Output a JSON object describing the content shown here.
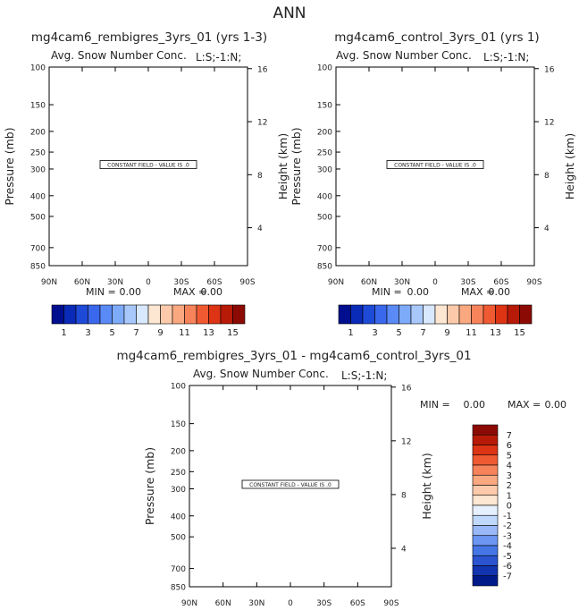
{
  "page": {
    "main_title": "ANN",
    "constant_field_text": "CONSTANT FIELD - VALUE IS .0",
    "min_label": "MIN =",
    "max_label": "MAX ="
  },
  "chart_data": [
    {
      "type": "contour",
      "title": "mg4cam6_rembigres_3yrs_01 (yrs 1-3)",
      "subtitle": "Avg. Snow Number Conc.",
      "field_label": "L:S;-1:N;",
      "xlabel": "",
      "ylabel": "Pressure (mb)",
      "y2label": "Height (km)",
      "x_ticks": [
        "90N",
        "60N",
        "30N",
        "0",
        "30S",
        "60S",
        "90S"
      ],
      "y_ticks": [
        "100",
        "150",
        "200",
        "250",
        "300",
        "400",
        "500",
        "700",
        "850"
      ],
      "y2_ticks": [
        "16",
        "12",
        "8",
        "4"
      ],
      "min": "0.00",
      "max": "0.00",
      "constant_value": 0,
      "colorbar": {
        "orientation": "horizontal",
        "labels": [
          "1",
          "3",
          "5",
          "7",
          "9",
          "11",
          "13",
          "15"
        ],
        "colors": [
          "#000f8e",
          "#0a2ab8",
          "#1e4ad8",
          "#3a68ec",
          "#5a8af6",
          "#7eaafa",
          "#a8c8fc",
          "#d8e8fe",
          "#fde6d2",
          "#fccaaa",
          "#f9a880",
          "#f6835a",
          "#f05a32",
          "#dc3414",
          "#b81a08",
          "#8c0a04"
        ]
      }
    },
    {
      "type": "contour",
      "title": "mg4cam6_control_3yrs_01 (yrs 1)",
      "subtitle": "Avg. Snow Number Conc.",
      "field_label": "L:S;-1:N;",
      "xlabel": "",
      "ylabel": "Pressure (mb)",
      "y2label": "Height (km)",
      "x_ticks": [
        "90N",
        "60N",
        "30N",
        "0",
        "30S",
        "60S",
        "90S"
      ],
      "y_ticks": [
        "100",
        "150",
        "200",
        "250",
        "300",
        "400",
        "500",
        "700",
        "850"
      ],
      "y2_ticks": [
        "16",
        "12",
        "8",
        "4"
      ],
      "min": "0.00",
      "max": "0.00",
      "constant_value": 0,
      "colorbar": {
        "orientation": "horizontal",
        "labels": [
          "1",
          "3",
          "5",
          "7",
          "9",
          "11",
          "13",
          "15"
        ],
        "colors": [
          "#000f8e",
          "#0a2ab8",
          "#1e4ad8",
          "#3a68ec",
          "#5a8af6",
          "#7eaafa",
          "#a8c8fc",
          "#d8e8fe",
          "#fde6d2",
          "#fccaaa",
          "#f9a880",
          "#f6835a",
          "#f05a32",
          "#dc3414",
          "#b81a08",
          "#8c0a04"
        ]
      }
    },
    {
      "type": "contour",
      "title": "mg4cam6_rembigres_3yrs_01 - mg4cam6_control_3yrs_01",
      "subtitle": "Avg. Snow Number Conc.",
      "field_label": "L:S;-1:N;",
      "xlabel": "",
      "ylabel": "Pressure (mb)",
      "y2label": "Height (km)",
      "x_ticks": [
        "90N",
        "60N",
        "30N",
        "0",
        "30S",
        "60S",
        "90S"
      ],
      "y_ticks": [
        "100",
        "150",
        "200",
        "250",
        "300",
        "400",
        "500",
        "700",
        "850"
      ],
      "y2_ticks": [
        "16",
        "12",
        "8",
        "4"
      ],
      "min": "0.00",
      "max": "0.00",
      "constant_value": 0,
      "colorbar": {
        "orientation": "vertical",
        "labels": [
          "7",
          "6",
          "5",
          "4",
          "3",
          "2",
          "1",
          "0",
          "-1",
          "-2",
          "-3",
          "-4",
          "-5",
          "-6",
          "-7"
        ],
        "colors": [
          "#8c0a04",
          "#b81a08",
          "#dc3414",
          "#f05a32",
          "#f6835a",
          "#f9a880",
          "#fccaaa",
          "#fde6d2",
          "#e6f0fe",
          "#c0d8fc",
          "#98b8f8",
          "#6c96f2",
          "#4676e6",
          "#2a54d0",
          "#1234b0",
          "#001a8a"
        ]
      }
    }
  ]
}
